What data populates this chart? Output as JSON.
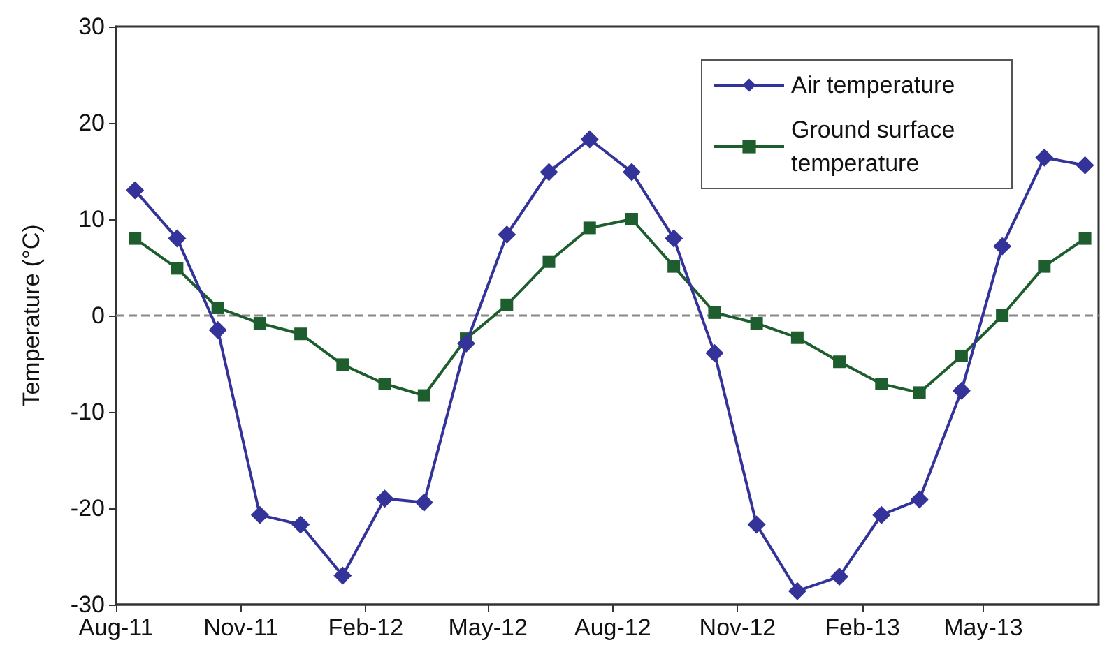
{
  "chart_data": {
    "type": "line",
    "ylabel": "Temperature (°C)",
    "x": [
      "2011-08-15",
      "2011-09-15",
      "2011-10-15",
      "2011-11-15",
      "2011-12-15",
      "2012-01-15",
      "2012-02-15",
      "2012-03-15",
      "2012-04-15",
      "2012-05-15",
      "2012-06-15",
      "2012-07-15",
      "2012-08-15",
      "2012-09-15",
      "2012-10-15",
      "2012-11-15",
      "2012-12-15",
      "2013-01-15",
      "2013-02-15",
      "2013-03-15",
      "2013-04-15",
      "2013-05-15",
      "2013-06-15",
      "2013-07-15"
    ],
    "series": [
      {
        "name": "Air temperature",
        "color": "#333399",
        "marker": "diamond",
        "values": [
          13.0,
          8.0,
          -1.5,
          -20.7,
          -21.7,
          -27.0,
          -19.0,
          -19.4,
          -2.9,
          8.4,
          14.9,
          18.3,
          14.9,
          8.0,
          -3.9,
          -21.7,
          -28.6,
          -27.1,
          -20.7,
          -19.1,
          -7.8,
          7.2,
          16.4,
          15.6
        ]
      },
      {
        "name": "Ground surface temperature",
        "color": "#1e5e2e",
        "marker": "square",
        "values": [
          8.0,
          4.9,
          0.8,
          -0.8,
          -1.9,
          -5.1,
          -7.1,
          -8.3,
          -2.4,
          1.1,
          5.6,
          9.1,
          10.0,
          5.1,
          0.3,
          -0.8,
          -2.3,
          -4.8,
          -7.1,
          -8.0,
          -4.2,
          0.0,
          5.1,
          8.0
        ]
      }
    ],
    "xlim": [
      "2011-08-01",
      "2013-07-25"
    ],
    "xticks": [
      {
        "value": "2011-08-01",
        "label": "Aug-11"
      },
      {
        "value": "2011-11-01",
        "label": "Nov-11"
      },
      {
        "value": "2012-02-01",
        "label": "Feb-12"
      },
      {
        "value": "2012-05-01",
        "label": "May-12"
      },
      {
        "value": "2012-08-01",
        "label": "Aug-12"
      },
      {
        "value": "2012-11-01",
        "label": "Nov-12"
      },
      {
        "value": "2013-02-01",
        "label": "Feb-13"
      },
      {
        "value": "2013-05-01",
        "label": "May-13"
      }
    ],
    "ylim": [
      -30,
      30
    ],
    "yticks": [
      -30,
      -20,
      -10,
      0,
      10,
      20,
      30
    ],
    "ref_lines": [
      {
        "axis": "y",
        "value": 0,
        "color": "#888888",
        "line_style": "dashed"
      }
    ],
    "grid": false,
    "legend": "top right"
  }
}
